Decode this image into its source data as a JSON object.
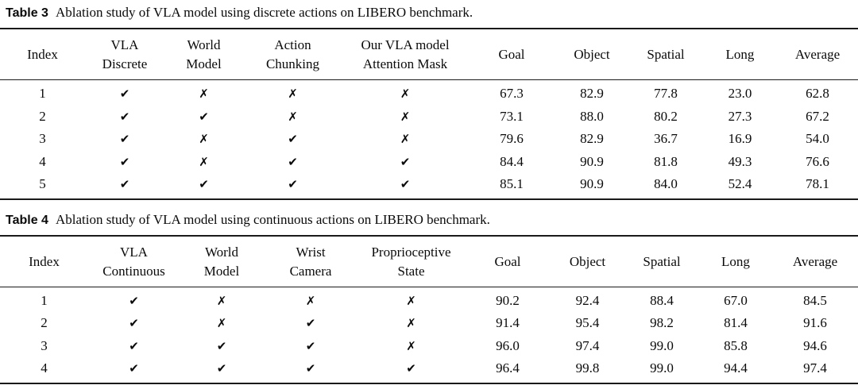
{
  "icons": {
    "check": "✔",
    "cross": "✗"
  },
  "tables": [
    {
      "label": "Table 3",
      "caption": "Ablation study of VLA model using discrete actions on LIBERO benchmark.",
      "headers": [
        [
          "Index"
        ],
        [
          "VLA",
          "Discrete"
        ],
        [
          "World",
          "Model"
        ],
        [
          "Action",
          "Chunking"
        ],
        [
          "Our VLA model",
          "Attention Mask"
        ],
        [
          "Goal"
        ],
        [
          "Object"
        ],
        [
          "Spatial"
        ],
        [
          "Long"
        ],
        [
          "Average"
        ]
      ],
      "rows": [
        {
          "index": "1",
          "flags": [
            "check",
            "cross",
            "cross",
            "cross"
          ],
          "scores": [
            "67.3",
            "82.9",
            "77.8",
            "23.0",
            "62.8"
          ]
        },
        {
          "index": "2",
          "flags": [
            "check",
            "check",
            "cross",
            "cross"
          ],
          "scores": [
            "73.1",
            "88.0",
            "80.2",
            "27.3",
            "67.2"
          ]
        },
        {
          "index": "3",
          "flags": [
            "check",
            "cross",
            "check",
            "cross"
          ],
          "scores": [
            "79.6",
            "82.9",
            "36.7",
            "16.9",
            "54.0"
          ]
        },
        {
          "index": "4",
          "flags": [
            "check",
            "cross",
            "check",
            "check"
          ],
          "scores": [
            "84.4",
            "90.9",
            "81.8",
            "49.3",
            "76.6"
          ]
        },
        {
          "index": "5",
          "flags": [
            "check",
            "check",
            "check",
            "check"
          ],
          "scores": [
            "85.1",
            "90.9",
            "84.0",
            "52.4",
            "78.1"
          ]
        }
      ]
    },
    {
      "label": "Table 4",
      "caption": "Ablation study of VLA model using continuous actions on LIBERO benchmark.",
      "headers": [
        [
          "Index"
        ],
        [
          "VLA",
          "Continuous"
        ],
        [
          "World",
          "Model"
        ],
        [
          "Wrist",
          "Camera"
        ],
        [
          "Proprioceptive",
          "State"
        ],
        [
          "Goal"
        ],
        [
          "Object"
        ],
        [
          "Spatial"
        ],
        [
          "Long"
        ],
        [
          "Average"
        ]
      ],
      "rows": [
        {
          "index": "1",
          "flags": [
            "check",
            "cross",
            "cross",
            "cross"
          ],
          "scores": [
            "90.2",
            "92.4",
            "88.4",
            "67.0",
            "84.5"
          ]
        },
        {
          "index": "2",
          "flags": [
            "check",
            "cross",
            "check",
            "cross"
          ],
          "scores": [
            "91.4",
            "95.4",
            "98.2",
            "81.4",
            "91.6"
          ]
        },
        {
          "index": "3",
          "flags": [
            "check",
            "check",
            "check",
            "cross"
          ],
          "scores": [
            "96.0",
            "97.4",
            "99.0",
            "85.8",
            "94.6"
          ]
        },
        {
          "index": "4",
          "flags": [
            "check",
            "check",
            "check",
            "check"
          ],
          "scores": [
            "96.4",
            "99.8",
            "99.0",
            "94.4",
            "97.4"
          ]
        }
      ]
    }
  ]
}
